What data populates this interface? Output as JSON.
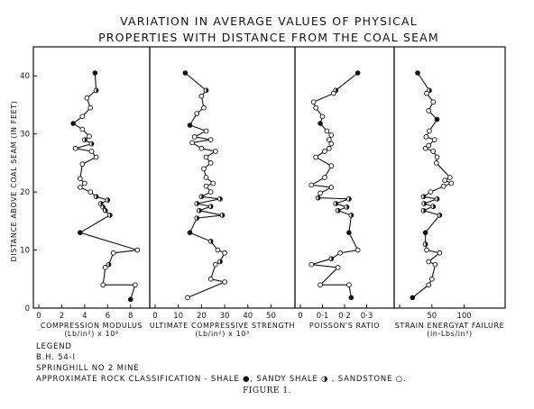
{
  "title_line1": "VARIATION IN AVERAGE VALUES OF PHYSICAL",
  "title_line2": "PROPERTIES WITH DISTANCE FROM THE COAL SEAM",
  "legend": {
    "heading": "LEGEND",
    "line1": "B.H. 54-I",
    "line2": "SPRINGHILL NO 2 MINE",
    "line3": "APPROXIMATE ROCK CLASSIFICATION -  SHALE ●, SANDY SHALE ◑ , SANDSTONE ○."
  },
  "caption": "FIGURE 1.",
  "chart_data": [
    {
      "type": "line",
      "xlabel": "COMPRESSION MODULUS",
      "xlabel2": "(Lb/in²) x 10⁶",
      "xlim": [
        0,
        9.2
      ],
      "xticks": [
        0,
        2,
        4,
        6,
        8
      ],
      "xtick_labels": [
        "0",
        "2",
        "4",
        "6",
        "8"
      ],
      "ylabel": "DISTANCE ABOVE COAL SEAM (IN FEET)",
      "ylim": [
        0,
        45
      ],
      "yticks": [
        0,
        10,
        20,
        30,
        40
      ],
      "points": [
        {
          "x": 4.9,
          "y": 40.5,
          "type": "shale"
        },
        {
          "x": 5.0,
          "y": 37.5,
          "type": "sandy_shale"
        },
        {
          "x": 4.2,
          "y": 36.2,
          "type": "sandstone"
        },
        {
          "x": 4.5,
          "y": 34.5,
          "type": "sandstone"
        },
        {
          "x": 3.8,
          "y": 33.0,
          "type": "sandstone"
        },
        {
          "x": 3.0,
          "y": 31.8,
          "type": "shale"
        },
        {
          "x": 3.8,
          "y": 30.8,
          "type": "sandstone"
        },
        {
          "x": 4.4,
          "y": 29.6,
          "type": "sandstone"
        },
        {
          "x": 4.0,
          "y": 29.0,
          "type": "sandy_shale"
        },
        {
          "x": 4.6,
          "y": 28.3,
          "type": "sandy_shale"
        },
        {
          "x": 3.2,
          "y": 27.5,
          "type": "sandstone"
        },
        {
          "x": 4.6,
          "y": 27.0,
          "type": "sandstone"
        },
        {
          "x": 5.0,
          "y": 26.0,
          "type": "sandstone"
        },
        {
          "x": 3.8,
          "y": 24.8,
          "type": "sandstone"
        },
        {
          "x": 3.6,
          "y": 22.3,
          "type": "sandstone"
        },
        {
          "x": 4.0,
          "y": 21.5,
          "type": "sandstone"
        },
        {
          "x": 3.6,
          "y": 20.8,
          "type": "sandstone"
        },
        {
          "x": 4.5,
          "y": 20.0,
          "type": "sandstone"
        },
        {
          "x": 5.0,
          "y": 19.2,
          "type": "sandy_shale"
        },
        {
          "x": 6.0,
          "y": 18.6,
          "type": "sandy_shale"
        },
        {
          "x": 5.4,
          "y": 18.0,
          "type": "sandy_shale"
        },
        {
          "x": 5.6,
          "y": 17.4,
          "type": "sandy_shale"
        },
        {
          "x": 5.8,
          "y": 16.8,
          "type": "sandy_shale"
        },
        {
          "x": 6.2,
          "y": 16.0,
          "type": "sandy_shale"
        },
        {
          "x": 3.6,
          "y": 13.0,
          "type": "shale"
        },
        {
          "x": 8.6,
          "y": 10.0,
          "type": "sandstone"
        },
        {
          "x": 6.5,
          "y": 9.5,
          "type": "sandstone"
        },
        {
          "x": 6.1,
          "y": 7.5,
          "type": "sandy_shale"
        },
        {
          "x": 5.8,
          "y": 7.0,
          "type": "sandstone"
        },
        {
          "x": 5.6,
          "y": 4.0,
          "type": "sandstone"
        },
        {
          "x": 8.4,
          "y": 4.0,
          "type": "sandstone"
        },
        {
          "x": 8.0,
          "y": 1.5,
          "type": "shale"
        }
      ]
    },
    {
      "type": "line",
      "xlabel": "ULTIMATE COMPRESSIVE STRENGTH",
      "xlabel2": "(Lb/in²) x 10³",
      "xlim": [
        0,
        58
      ],
      "xticks": [
        0,
        10,
        20,
        30,
        40,
        50
      ],
      "xtick_labels": [
        "0",
        "10",
        "20",
        "30",
        "40",
        "50"
      ],
      "points": [
        {
          "x": 13,
          "y": 40.5,
          "type": "shale"
        },
        {
          "x": 22,
          "y": 37.5,
          "type": "sandy_shale"
        },
        {
          "x": 20,
          "y": 36.5,
          "type": "sandstone"
        },
        {
          "x": 21,
          "y": 34.5,
          "type": "sandstone"
        },
        {
          "x": 18,
          "y": 33.5,
          "type": "sandstone"
        },
        {
          "x": 15,
          "y": 31.5,
          "type": "shale"
        },
        {
          "x": 22,
          "y": 30.5,
          "type": "sandstone"
        },
        {
          "x": 17,
          "y": 29.5,
          "type": "sandstone"
        },
        {
          "x": 24,
          "y": 29.0,
          "type": "sandstone"
        },
        {
          "x": 16,
          "y": 28.5,
          "type": "sandstone"
        },
        {
          "x": 20,
          "y": 27.5,
          "type": "sandstone"
        },
        {
          "x": 26,
          "y": 27.0,
          "type": "sandstone"
        },
        {
          "x": 22,
          "y": 26.0,
          "type": "sandstone"
        },
        {
          "x": 24,
          "y": 25.0,
          "type": "sandstone"
        },
        {
          "x": 21,
          "y": 24.0,
          "type": "sandstone"
        },
        {
          "x": 22,
          "y": 22.5,
          "type": "sandstone"
        },
        {
          "x": 25,
          "y": 21.5,
          "type": "sandstone"
        },
        {
          "x": 22,
          "y": 21.0,
          "type": "sandstone"
        },
        {
          "x": 24,
          "y": 20.0,
          "type": "sandstone"
        },
        {
          "x": 20,
          "y": 19.2,
          "type": "sandy_shale"
        },
        {
          "x": 28,
          "y": 18.8,
          "type": "sandy_shale"
        },
        {
          "x": 18,
          "y": 18.0,
          "type": "sandy_shale"
        },
        {
          "x": 24,
          "y": 17.5,
          "type": "sandy_shale"
        },
        {
          "x": 19,
          "y": 16.8,
          "type": "sandy_shale"
        },
        {
          "x": 29,
          "y": 16.0,
          "type": "sandy_shale"
        },
        {
          "x": 18,
          "y": 15.5,
          "type": "sandy_shale"
        },
        {
          "x": 15,
          "y": 13.0,
          "type": "shale"
        },
        {
          "x": 24,
          "y": 11.5,
          "type": "sandy_shale"
        },
        {
          "x": 27,
          "y": 10.0,
          "type": "sandstone"
        },
        {
          "x": 30,
          "y": 9.5,
          "type": "sandstone"
        },
        {
          "x": 28,
          "y": 8.0,
          "type": "sandy_shale"
        },
        {
          "x": 26,
          "y": 7.5,
          "type": "sandstone"
        },
        {
          "x": 24,
          "y": 5.0,
          "type": "sandstone"
        },
        {
          "x": 30,
          "y": 4.5,
          "type": "sandstone"
        },
        {
          "x": 14,
          "y": 1.8,
          "type": "sandstone"
        }
      ]
    },
    {
      "type": "line",
      "xlabel": "POISSON'S RATIO",
      "xlabel2": "",
      "xlim": [
        0,
        0.4
      ],
      "xticks": [
        0,
        0.1,
        0.2,
        0.3
      ],
      "xtick_labels": [
        "0",
        "0·1",
        "0·2",
        "0·3"
      ],
      "points": [
        {
          "x": 0.26,
          "y": 40.5,
          "type": "shale"
        },
        {
          "x": 0.16,
          "y": 37.5,
          "type": "sandy_shale"
        },
        {
          "x": 0.15,
          "y": 37.0,
          "type": "sandstone"
        },
        {
          "x": 0.06,
          "y": 35.5,
          "type": "sandstone"
        },
        {
          "x": 0.07,
          "y": 34.5,
          "type": "sandstone"
        },
        {
          "x": 0.1,
          "y": 33.0,
          "type": "sandstone"
        },
        {
          "x": 0.09,
          "y": 31.8,
          "type": "shale"
        },
        {
          "x": 0.12,
          "y": 30.5,
          "type": "sandstone"
        },
        {
          "x": 0.14,
          "y": 29.8,
          "type": "sandstone"
        },
        {
          "x": 0.13,
          "y": 29.0,
          "type": "sandstone"
        },
        {
          "x": 0.14,
          "y": 28.3,
          "type": "sandstone"
        },
        {
          "x": 0.13,
          "y": 27.5,
          "type": "sandstone"
        },
        {
          "x": 0.11,
          "y": 27.0,
          "type": "sandstone"
        },
        {
          "x": 0.07,
          "y": 26.0,
          "type": "sandstone"
        },
        {
          "x": 0.14,
          "y": 24.5,
          "type": "sandstone"
        },
        {
          "x": 0.11,
          "y": 22.5,
          "type": "sandstone"
        },
        {
          "x": 0.05,
          "y": 21.2,
          "type": "sandstone"
        },
        {
          "x": 0.14,
          "y": 20.8,
          "type": "sandstone"
        },
        {
          "x": 0.09,
          "y": 19.8,
          "type": "sandstone"
        },
        {
          "x": 0.08,
          "y": 19.0,
          "type": "sandy_shale"
        },
        {
          "x": 0.22,
          "y": 18.8,
          "type": "sandy_shale"
        },
        {
          "x": 0.16,
          "y": 18.0,
          "type": "sandy_shale"
        },
        {
          "x": 0.21,
          "y": 17.4,
          "type": "sandy_shale"
        },
        {
          "x": 0.17,
          "y": 16.8,
          "type": "sandy_shale"
        },
        {
          "x": 0.23,
          "y": 16.0,
          "type": "sandy_shale"
        },
        {
          "x": 0.22,
          "y": 13.0,
          "type": "shale"
        },
        {
          "x": 0.26,
          "y": 10.0,
          "type": "sandstone"
        },
        {
          "x": 0.18,
          "y": 9.5,
          "type": "sandstone"
        },
        {
          "x": 0.14,
          "y": 8.5,
          "type": "sandy_shale"
        },
        {
          "x": 0.05,
          "y": 7.5,
          "type": "sandstone"
        },
        {
          "x": 0.17,
          "y": 7.0,
          "type": "sandstone"
        },
        {
          "x": 0.09,
          "y": 4.0,
          "type": "sandstone"
        },
        {
          "x": 0.22,
          "y": 4.0,
          "type": "sandstone"
        },
        {
          "x": 0.23,
          "y": 1.8,
          "type": "shale"
        }
      ]
    },
    {
      "type": "line",
      "xlabel": "STRAIN ENERGYAT FAILURE",
      "xlabel2": "(in-Lbs/in³)",
      "xlim": [
        0,
        155
      ],
      "xticks": [
        0,
        50,
        100
      ],
      "xtick_labels": [
        "",
        "50",
        "100"
      ],
      "points": [
        {
          "x": 28,
          "y": 40.5,
          "type": "shale"
        },
        {
          "x": 46,
          "y": 37.5,
          "type": "sandy_shale"
        },
        {
          "x": 42,
          "y": 37.0,
          "type": "sandstone"
        },
        {
          "x": 52,
          "y": 35.5,
          "type": "sandstone"
        },
        {
          "x": 45,
          "y": 34.0,
          "type": "sandstone"
        },
        {
          "x": 58,
          "y": 32.5,
          "type": "shale"
        },
        {
          "x": 46,
          "y": 30.5,
          "type": "sandstone"
        },
        {
          "x": 41,
          "y": 29.5,
          "type": "sandstone"
        },
        {
          "x": 54,
          "y": 29.0,
          "type": "sandstone"
        },
        {
          "x": 45,
          "y": 28.0,
          "type": "sandstone"
        },
        {
          "x": 40,
          "y": 27.5,
          "type": "sandstone"
        },
        {
          "x": 52,
          "y": 27.0,
          "type": "sandstone"
        },
        {
          "x": 58,
          "y": 26.0,
          "type": "sandstone"
        },
        {
          "x": 57,
          "y": 25.0,
          "type": "sandstone"
        },
        {
          "x": 78,
          "y": 22.5,
          "type": "sandstone"
        },
        {
          "x": 70,
          "y": 22.0,
          "type": "sandstone"
        },
        {
          "x": 80,
          "y": 21.5,
          "type": "sandstone"
        },
        {
          "x": 68,
          "y": 21.0,
          "type": "sandstone"
        },
        {
          "x": 48,
          "y": 20.0,
          "type": "sandstone"
        },
        {
          "x": 37,
          "y": 19.2,
          "type": "sandy_shale"
        },
        {
          "x": 58,
          "y": 18.8,
          "type": "sandy_shale"
        },
        {
          "x": 38,
          "y": 18.0,
          "type": "sandy_shale"
        },
        {
          "x": 52,
          "y": 17.5,
          "type": "sandy_shale"
        },
        {
          "x": 37,
          "y": 16.8,
          "type": "sandy_shale"
        },
        {
          "x": 62,
          "y": 16.0,
          "type": "sandy_shale"
        },
        {
          "x": 40,
          "y": 13.0,
          "type": "shale"
        },
        {
          "x": 40,
          "y": 11.0,
          "type": "sandy_shale"
        },
        {
          "x": 42,
          "y": 10.0,
          "type": "sandstone"
        },
        {
          "x": 62,
          "y": 9.5,
          "type": "sandstone"
        },
        {
          "x": 45,
          "y": 8.0,
          "type": "sandstone"
        },
        {
          "x": 55,
          "y": 7.5,
          "type": "sandstone"
        },
        {
          "x": 50,
          "y": 5.0,
          "type": "sandstone"
        },
        {
          "x": 45,
          "y": 4.0,
          "type": "sandstone"
        },
        {
          "x": 20,
          "y": 1.8,
          "type": "shale"
        }
      ]
    }
  ]
}
